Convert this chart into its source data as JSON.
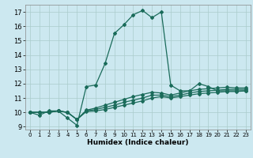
{
  "xlabel": "Humidex (Indice chaleur)",
  "bg_color": "#cce8f0",
  "grid_color": "#aacccc",
  "line_color": "#1a6b5a",
  "xlim": [
    -0.5,
    23.5
  ],
  "ylim": [
    8.8,
    17.5
  ],
  "xticks": [
    0,
    1,
    2,
    3,
    4,
    5,
    6,
    7,
    8,
    9,
    10,
    11,
    12,
    13,
    14,
    15,
    16,
    17,
    18,
    19,
    20,
    21,
    22,
    23
  ],
  "yticks": [
    9,
    10,
    11,
    12,
    13,
    14,
    15,
    16,
    17
  ],
  "line1_x": [
    0,
    1,
    2,
    3,
    4,
    5,
    6,
    7,
    8,
    9,
    10,
    11,
    12,
    13,
    14,
    15,
    16,
    17,
    18,
    19,
    20,
    21,
    22,
    23
  ],
  "line1_y": [
    10.0,
    9.8,
    10.1,
    10.1,
    9.6,
    9.1,
    11.8,
    11.9,
    13.4,
    15.5,
    16.1,
    16.8,
    17.1,
    16.6,
    17.0,
    11.9,
    11.5,
    11.5,
    12.0,
    11.8,
    11.5,
    11.5,
    11.5,
    11.5
  ],
  "line2_x": [
    0,
    1,
    2,
    3,
    4,
    5,
    6,
    7,
    8,
    9,
    10,
    11,
    12,
    13,
    14,
    15,
    16,
    17,
    18,
    19,
    20,
    21,
    22,
    23
  ],
  "line2_y": [
    10.0,
    10.0,
    10.0,
    10.1,
    10.0,
    9.5,
    10.05,
    10.1,
    10.2,
    10.35,
    10.5,
    10.65,
    10.8,
    11.0,
    11.1,
    11.0,
    11.1,
    11.2,
    11.3,
    11.35,
    11.4,
    11.45,
    11.45,
    11.5
  ],
  "line3_x": [
    0,
    1,
    2,
    3,
    4,
    5,
    6,
    7,
    8,
    9,
    10,
    11,
    12,
    13,
    14,
    15,
    16,
    17,
    18,
    19,
    20,
    21,
    22,
    23
  ],
  "line3_y": [
    10.0,
    10.0,
    10.0,
    10.1,
    10.0,
    9.5,
    10.1,
    10.2,
    10.35,
    10.5,
    10.7,
    10.85,
    11.0,
    11.2,
    11.2,
    11.1,
    11.2,
    11.35,
    11.45,
    11.5,
    11.55,
    11.6,
    11.6,
    11.6
  ],
  "line4_x": [
    0,
    1,
    2,
    3,
    4,
    5,
    6,
    7,
    8,
    9,
    10,
    11,
    12,
    13,
    14,
    15,
    16,
    17,
    18,
    19,
    20,
    21,
    22,
    23
  ],
  "line4_y": [
    10.0,
    10.0,
    10.0,
    10.1,
    10.0,
    9.5,
    10.15,
    10.3,
    10.5,
    10.7,
    10.9,
    11.1,
    11.25,
    11.4,
    11.35,
    11.2,
    11.35,
    11.5,
    11.6,
    11.65,
    11.7,
    11.75,
    11.7,
    11.7
  ]
}
